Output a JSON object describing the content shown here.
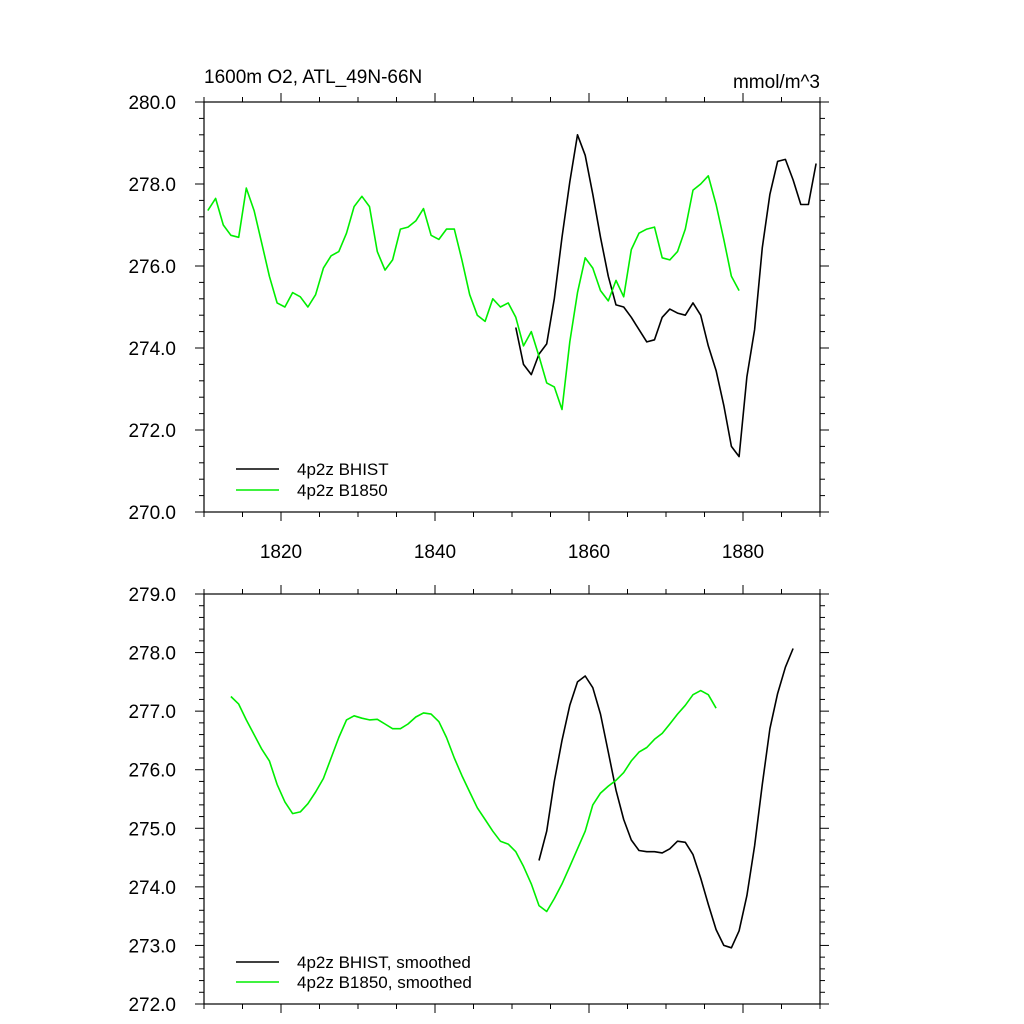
{
  "figure": {
    "title_left": "1600m O2, ATL_49N-66N",
    "title_right": "mmol/m^3"
  },
  "colors": {
    "bhist": "#000000",
    "b1850": "#00ee00",
    "axis": "#000000"
  },
  "chart_data": [
    {
      "type": "line",
      "panel": "top",
      "xlim": [
        1810,
        1890
      ],
      "ylim": [
        270,
        280
      ],
      "xticks": [
        1820,
        1840,
        1860,
        1880
      ],
      "xtick_labels": [
        "1820",
        "1840",
        "1860",
        "1880"
      ],
      "yticks": [
        270,
        272,
        274,
        276,
        278,
        280
      ],
      "ytick_labels": [
        "270.0",
        "272.0",
        "274.0",
        "276.0",
        "278.0",
        "280.0"
      ],
      "legend_position": "bottom-left",
      "series": [
        {
          "name": "4p2z BHIST",
          "color_key": "bhist",
          "x": [
            1850.5,
            1851.5,
            1852.5,
            1853.5,
            1854.5,
            1855.5,
            1856.5,
            1857.5,
            1858.5,
            1859.5,
            1860.5,
            1861.5,
            1862.5,
            1863.5,
            1864.5,
            1865.5,
            1866.5,
            1867.5,
            1868.5,
            1869.5,
            1870.5,
            1871.5,
            1872.5,
            1873.5,
            1874.5,
            1875.5,
            1876.5,
            1877.5,
            1878.5,
            1879.5,
            1880.5,
            1881.5,
            1882.5,
            1883.5,
            1884.5,
            1885.5,
            1886.5,
            1887.5,
            1888.5,
            1889.5
          ],
          "values": [
            274.5,
            273.6,
            273.35,
            273.85,
            274.1,
            275.2,
            276.7,
            278.05,
            279.2,
            278.7,
            277.75,
            276.7,
            275.75,
            275.05,
            275.0,
            274.75,
            274.45,
            274.15,
            274.2,
            274.75,
            274.95,
            274.85,
            274.8,
            275.1,
            274.8,
            274.05,
            273.45,
            272.6,
            271.6,
            271.35,
            273.3,
            274.45,
            276.45,
            277.75,
            278.55,
            278.6,
            278.1,
            277.5,
            277.5,
            278.5
          ]
        },
        {
          "name": "4p2z B1850",
          "color_key": "b1850",
          "x": [
            1810.5,
            1811.5,
            1812.5,
            1813.5,
            1814.5,
            1815.5,
            1816.5,
            1817.5,
            1818.5,
            1819.5,
            1820.5,
            1821.5,
            1822.5,
            1823.5,
            1824.5,
            1825.5,
            1826.5,
            1827.5,
            1828.5,
            1829.5,
            1830.5,
            1831.5,
            1832.5,
            1833.5,
            1834.5,
            1835.5,
            1836.5,
            1837.5,
            1838.5,
            1839.5,
            1840.5,
            1841.5,
            1842.5,
            1843.5,
            1844.5,
            1845.5,
            1846.5,
            1847.5,
            1848.5,
            1849.5,
            1850.5,
            1851.5,
            1852.5,
            1853.5,
            1854.5,
            1855.5,
            1856.5,
            1857.5,
            1858.5,
            1859.5,
            1860.5,
            1861.5,
            1862.5,
            1863.5,
            1864.5,
            1865.5,
            1866.5,
            1867.5,
            1868.5,
            1869.5,
            1870.5,
            1871.5,
            1872.5,
            1873.5,
            1874.5,
            1875.5,
            1876.5,
            1877.5,
            1878.5,
            1879.5
          ],
          "values": [
            277.35,
            277.65,
            277.0,
            276.75,
            276.7,
            277.9,
            277.35,
            276.55,
            275.75,
            275.1,
            275.0,
            275.35,
            275.25,
            275.0,
            275.3,
            275.95,
            276.25,
            276.35,
            276.8,
            277.45,
            277.7,
            277.45,
            276.35,
            275.9,
            276.15,
            276.9,
            276.95,
            277.1,
            277.4,
            276.75,
            276.65,
            276.9,
            276.9,
            276.15,
            275.3,
            274.8,
            274.65,
            275.2,
            275.0,
            275.1,
            274.75,
            274.05,
            274.4,
            273.8,
            273.15,
            273.05,
            272.5,
            274.15,
            275.35,
            276.2,
            275.95,
            275.4,
            275.15,
            275.65,
            275.25,
            276.4,
            276.8,
            276.9,
            276.95,
            276.2,
            276.15,
            276.35,
            276.9,
            277.85,
            278.0,
            278.2,
            277.5,
            276.65,
            275.75,
            275.4
          ]
        }
      ]
    },
    {
      "type": "line",
      "panel": "bottom",
      "xlim": [
        1810,
        1890
      ],
      "ylim": [
        272,
        279
      ],
      "xticks": [
        1820,
        1840,
        1860,
        1880
      ],
      "yticks": [
        272,
        273,
        274,
        275,
        276,
        277,
        278,
        279
      ],
      "ytick_labels": [
        "272.0",
        "273.0",
        "274.0",
        "275.0",
        "276.0",
        "277.0",
        "278.0",
        "279.0"
      ],
      "legend_position": "bottom-left",
      "series": [
        {
          "name": "4p2z BHIST, smoothed",
          "color_key": "bhist",
          "x": [
            1853.5,
            1854.5,
            1855.5,
            1856.5,
            1857.5,
            1858.5,
            1859.5,
            1860.5,
            1861.5,
            1862.5,
            1863.5,
            1864.5,
            1865.5,
            1866.5,
            1867.5,
            1868.5,
            1869.5,
            1870.5,
            1871.5,
            1872.5,
            1873.5,
            1874.5,
            1875.5,
            1876.5,
            1877.5,
            1878.5,
            1879.5,
            1880.5,
            1881.5,
            1882.5,
            1883.5,
            1884.5,
            1885.5,
            1886.5
          ],
          "values": [
            274.45,
            274.95,
            275.8,
            276.5,
            277.1,
            277.5,
            277.6,
            277.4,
            276.95,
            276.3,
            275.65,
            275.15,
            274.8,
            274.62,
            274.6,
            274.6,
            274.58,
            274.65,
            274.78,
            274.76,
            274.55,
            274.15,
            273.7,
            273.27,
            273.0,
            272.96,
            273.25,
            273.85,
            274.7,
            275.75,
            276.7,
            277.3,
            277.75,
            278.07
          ]
        },
        {
          "name": "4p2z B1850, smoothed",
          "color_key": "b1850",
          "x": [
            1813.5,
            1814.5,
            1815.5,
            1816.5,
            1817.5,
            1818.5,
            1819.5,
            1820.5,
            1821.5,
            1822.5,
            1823.5,
            1824.5,
            1825.5,
            1826.5,
            1827.5,
            1828.5,
            1829.5,
            1830.5,
            1831.5,
            1832.5,
            1833.5,
            1834.5,
            1835.5,
            1836.5,
            1837.5,
            1838.5,
            1839.5,
            1840.5,
            1841.5,
            1842.5,
            1843.5,
            1844.5,
            1845.5,
            1846.5,
            1847.5,
            1848.5,
            1849.5,
            1850.5,
            1851.5,
            1852.5,
            1853.5,
            1854.5,
            1855.5,
            1856.5,
            1857.5,
            1858.5,
            1859.5,
            1860.5,
            1861.5,
            1862.5,
            1863.5,
            1864.5,
            1865.5,
            1866.5,
            1867.5,
            1868.5,
            1869.5,
            1870.5,
            1871.5,
            1872.5,
            1873.5,
            1874.5,
            1875.5,
            1876.5
          ],
          "values": [
            277.25,
            277.12,
            276.85,
            276.6,
            276.35,
            276.15,
            275.75,
            275.45,
            275.25,
            275.28,
            275.42,
            275.62,
            275.85,
            276.2,
            276.55,
            276.85,
            276.92,
            276.88,
            276.85,
            276.86,
            276.78,
            276.7,
            276.7,
            276.78,
            276.9,
            276.97,
            276.95,
            276.82,
            276.55,
            276.2,
            275.9,
            275.62,
            275.35,
            275.15,
            274.95,
            274.78,
            274.73,
            274.6,
            274.35,
            274.05,
            273.68,
            273.58,
            273.8,
            274.05,
            274.35,
            274.65,
            274.95,
            275.4,
            275.6,
            275.72,
            275.82,
            275.95,
            276.15,
            276.3,
            276.38,
            276.52,
            276.62,
            276.78,
            276.95,
            277.1,
            277.28,
            277.35,
            277.28,
            277.05
          ]
        }
      ]
    }
  ]
}
